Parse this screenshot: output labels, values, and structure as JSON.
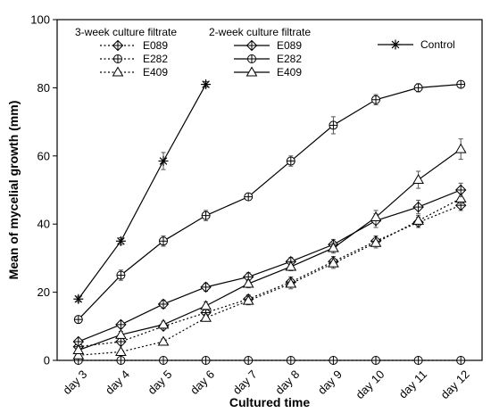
{
  "chart_data": {
    "type": "line",
    "xlabel": "Cultured time",
    "ylabel": "Mean of mycelial growth (mm)",
    "ylim": [
      0,
      100
    ],
    "yticks": [
      0,
      20,
      40,
      60,
      80,
      100
    ],
    "categories": [
      "day 3",
      "day 4",
      "day 5",
      "day 6",
      "day 7",
      "day 8",
      "day 9",
      "day 10",
      "day 11",
      "day 12"
    ],
    "legend_groups": [
      {
        "title": "3-week culture filtrate",
        "entries": [
          "E089",
          "E282",
          "E409"
        ]
      },
      {
        "title": "2-week culture filtrate",
        "entries": [
          "E089",
          "E282",
          "E409"
        ]
      },
      {
        "title": "",
        "entries": [
          "Control"
        ]
      }
    ],
    "series": [
      {
        "name": "E089",
        "group": "3-week culture filtrate",
        "style": "dotted",
        "marker": "diamond-plus",
        "values": [
          4,
          5.5,
          10,
          14,
          18,
          23,
          29,
          35,
          40.5,
          45.5
        ],
        "errors": [
          0.5,
          0.8,
          0.8,
          1.0,
          1.2,
          1.5,
          1.5,
          1.5,
          1.5,
          1.5
        ]
      },
      {
        "name": "E282",
        "group": "3-week culture filtrate",
        "style": "dotted",
        "marker": "circle-plus",
        "values": [
          0,
          0,
          0,
          0,
          0,
          0,
          0,
          0,
          0,
          0
        ],
        "errors": [
          0,
          0,
          0,
          0,
          0,
          0,
          0,
          0,
          0,
          0
        ]
      },
      {
        "name": "E409",
        "group": "3-week culture filtrate",
        "style": "dotted",
        "marker": "triangle",
        "values": [
          1.5,
          2.5,
          5.5,
          12.5,
          17.5,
          22.5,
          28.5,
          34.5,
          41,
          47.5
        ],
        "errors": [
          0.5,
          0.5,
          0.8,
          1.0,
          1.2,
          1.5,
          1.5,
          1.5,
          1.5,
          1.5
        ]
      },
      {
        "name": "E089",
        "group": "2-week culture filtrate",
        "style": "solid",
        "marker": "diamond-plus",
        "values": [
          5.5,
          10.5,
          16.5,
          21.5,
          24.5,
          29,
          34,
          41,
          45,
          50
        ],
        "errors": [
          0.8,
          1.0,
          1.2,
          1.2,
          1.2,
          1.2,
          1.5,
          2.0,
          2.0,
          2.0
        ]
      },
      {
        "name": "E282",
        "group": "2-week culture filtrate",
        "style": "solid",
        "marker": "circle-plus",
        "values": [
          12,
          25,
          35,
          42.5,
          48,
          58.5,
          69,
          76.5,
          80,
          81
        ],
        "errors": [
          0.8,
          1.5,
          1.5,
          1.5,
          1.0,
          1.5,
          2.5,
          1.5,
          1.2,
          0.8
        ]
      },
      {
        "name": "E409",
        "group": "2-week culture filtrate",
        "style": "solid",
        "marker": "triangle",
        "values": [
          3,
          7.5,
          10.5,
          16,
          22.5,
          27.5,
          33,
          42,
          53,
          62
        ],
        "errors": [
          0.6,
          1.0,
          1.0,
          1.2,
          1.2,
          1.2,
          1.5,
          2.0,
          2.5,
          3.0
        ]
      },
      {
        "name": "Control",
        "group": "",
        "style": "solid",
        "marker": "star",
        "values": [
          18,
          35,
          58.5,
          81,
          null,
          null,
          null,
          null,
          null,
          null
        ],
        "errors": [
          0.8,
          1.0,
          2.5,
          0.8,
          null,
          null,
          null,
          null,
          null,
          null
        ]
      }
    ]
  }
}
